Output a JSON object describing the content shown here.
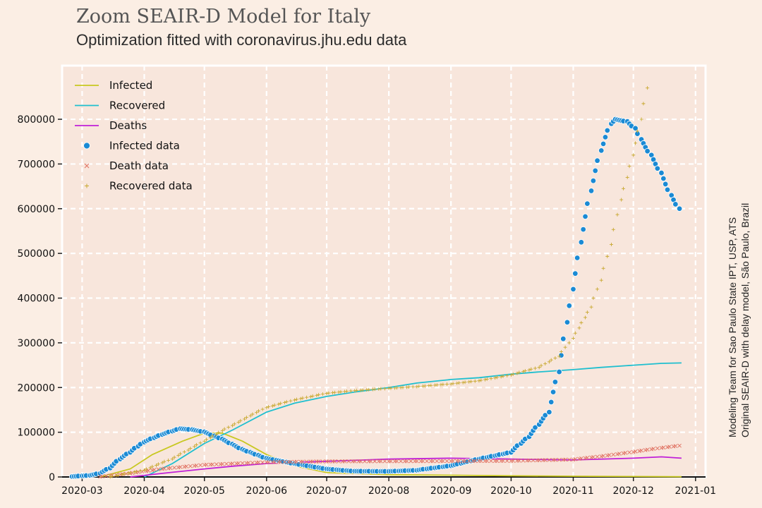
{
  "header": {
    "title": "Zoom SEAIR-D Model for Italy",
    "subtitle": "Optimization fitted with coronavirus.jhu.edu data"
  },
  "credits": {
    "line1": "Modeling Team for Sao Paulo State IPT, USP, ATS",
    "line2": "Original SEAIR-D with delay model, São Paulo, Brazil"
  },
  "colors": {
    "background": "#fbeee4",
    "plot_background": "#f8e6dc",
    "grid": "#ffffff",
    "infected_model": "#c8c820",
    "recovered_model": "#1fbfcf",
    "deaths_model": "#c020d8",
    "infected_data": "#1a8ad4",
    "death_data": "#e07060",
    "recovered_data": "#c8a830"
  },
  "chart_data": {
    "type": "line",
    "title": "Zoom SEAIR-D Model for Italy",
    "subtitle": "Optimization fitted with coronavirus.jhu.edu data",
    "xlabel": "",
    "ylabel": "",
    "x_ticks": [
      "2020-03",
      "2020-04",
      "2020-05",
      "2020-06",
      "2020-07",
      "2020-08",
      "2020-09",
      "2020-10",
      "2020-11",
      "2020-12",
      "2021-01"
    ],
    "y_ticks": [
      "0",
      "100000",
      "200000",
      "300000",
      "400000",
      "500000",
      "600000",
      "700000",
      "800000"
    ],
    "xlim": [
      "2020-02-20",
      "2021-01-06"
    ],
    "ylim": [
      0,
      920000
    ],
    "grid": true,
    "legend_position": "top-left",
    "legend": [
      "Infected",
      "Recovered",
      "Deaths",
      "Infected data",
      "Death data",
      "Recovered data"
    ],
    "series": [
      {
        "name": "Infected",
        "kind": "line",
        "points": [
          [
            "2020-03-10",
            0
          ],
          [
            "2020-03-25",
            18000
          ],
          [
            "2020-04-05",
            50000
          ],
          [
            "2020-04-20",
            80000
          ],
          [
            "2020-05-01",
            98000
          ],
          [
            "2020-05-10",
            98000
          ],
          [
            "2020-05-20",
            80000
          ],
          [
            "2020-06-01",
            50000
          ],
          [
            "2020-06-15",
            25000
          ],
          [
            "2020-07-01",
            10000
          ],
          [
            "2020-08-01",
            5000
          ],
          [
            "2020-09-01",
            4000
          ],
          [
            "2020-10-01",
            2500
          ],
          [
            "2020-11-01",
            1500
          ],
          [
            "2020-12-01",
            1000
          ],
          [
            "2020-12-25",
            500
          ]
        ]
      },
      {
        "name": "Recovered",
        "kind": "line",
        "points": [
          [
            "2020-04-01",
            0
          ],
          [
            "2020-04-15",
            30000
          ],
          [
            "2020-05-01",
            75000
          ],
          [
            "2020-05-15",
            105000
          ],
          [
            "2020-06-01",
            145000
          ],
          [
            "2020-06-15",
            165000
          ],
          [
            "2020-07-01",
            180000
          ],
          [
            "2020-07-15",
            190000
          ],
          [
            "2020-08-01",
            200000
          ],
          [
            "2020-08-15",
            210000
          ],
          [
            "2020-09-01",
            218000
          ],
          [
            "2020-09-15",
            222000
          ],
          [
            "2020-10-01",
            230000
          ],
          [
            "2020-10-15",
            235000
          ],
          [
            "2020-11-01",
            240000
          ],
          [
            "2020-11-15",
            245000
          ],
          [
            "2020-12-01",
            250000
          ],
          [
            "2020-12-15",
            254000
          ],
          [
            "2020-12-25",
            255000
          ]
        ]
      },
      {
        "name": "Deaths",
        "kind": "line",
        "points": [
          [
            "2020-03-25",
            0
          ],
          [
            "2020-04-10",
            8000
          ],
          [
            "2020-05-01",
            18000
          ],
          [
            "2020-05-15",
            24000
          ],
          [
            "2020-06-01",
            30000
          ],
          [
            "2020-07-01",
            35000
          ],
          [
            "2020-08-01",
            40000
          ],
          [
            "2020-09-01",
            42000
          ],
          [
            "2020-10-01",
            40000
          ],
          [
            "2020-11-01",
            38000
          ],
          [
            "2020-12-01",
            42000
          ],
          [
            "2020-12-15",
            45000
          ],
          [
            "2020-12-25",
            42000
          ]
        ]
      },
      {
        "name": "Infected data",
        "kind": "dot",
        "points": [
          [
            "2020-02-25",
            1000
          ],
          [
            "2020-03-05",
            3500
          ],
          [
            "2020-03-10",
            8000
          ],
          [
            "2020-03-15",
            20000
          ],
          [
            "2020-03-20",
            40000
          ],
          [
            "2020-03-25",
            55000
          ],
          [
            "2020-04-01",
            78000
          ],
          [
            "2020-04-10",
            95000
          ],
          [
            "2020-04-19",
            108000
          ],
          [
            "2020-04-25",
            106000
          ],
          [
            "2020-05-01",
            101000
          ],
          [
            "2020-05-10",
            85000
          ],
          [
            "2020-05-20",
            62000
          ],
          [
            "2020-06-01",
            42000
          ],
          [
            "2020-06-15",
            30000
          ],
          [
            "2020-07-01",
            18000
          ],
          [
            "2020-07-15",
            13000
          ],
          [
            "2020-08-01",
            12500
          ],
          [
            "2020-08-15",
            15000
          ],
          [
            "2020-09-01",
            25000
          ],
          [
            "2020-09-15",
            40000
          ],
          [
            "2020-10-01",
            55000
          ],
          [
            "2020-10-10",
            90000
          ],
          [
            "2020-10-20",
            145000
          ],
          [
            "2020-10-25",
            235000
          ],
          [
            "2020-11-01",
            420000
          ],
          [
            "2020-11-05",
            525000
          ],
          [
            "2020-11-10",
            640000
          ],
          [
            "2020-11-15",
            730000
          ],
          [
            "2020-11-20",
            790000
          ],
          [
            "2020-11-22",
            800000
          ],
          [
            "2020-11-28",
            795000
          ],
          [
            "2020-12-02",
            780000
          ],
          [
            "2020-12-05",
            755000
          ],
          [
            "2020-12-10",
            720000
          ],
          [
            "2020-12-15",
            680000
          ],
          [
            "2020-12-20",
            630000
          ],
          [
            "2020-12-24",
            600000
          ]
        ]
      },
      {
        "name": "Death data",
        "kind": "x",
        "points": [
          [
            "2020-03-10",
            500
          ],
          [
            "2020-03-25",
            8000
          ],
          [
            "2020-04-10",
            18000
          ],
          [
            "2020-05-01",
            27000
          ],
          [
            "2020-06-01",
            33000
          ],
          [
            "2020-07-01",
            34800
          ],
          [
            "2020-08-01",
            35200
          ],
          [
            "2020-09-01",
            35500
          ],
          [
            "2020-10-01",
            36000
          ],
          [
            "2020-11-01",
            39000
          ],
          [
            "2020-11-15",
            46000
          ],
          [
            "2020-12-01",
            56000
          ],
          [
            "2020-12-15",
            65000
          ],
          [
            "2020-12-24",
            70000
          ]
        ]
      },
      {
        "name": "Recovered data",
        "kind": "plus",
        "points": [
          [
            "2020-03-15",
            0
          ],
          [
            "2020-04-01",
            15000
          ],
          [
            "2020-04-15",
            40000
          ],
          [
            "2020-05-01",
            80000
          ],
          [
            "2020-05-15",
            115000
          ],
          [
            "2020-06-01",
            155000
          ],
          [
            "2020-06-15",
            172000
          ],
          [
            "2020-07-01",
            187000
          ],
          [
            "2020-07-15",
            193000
          ],
          [
            "2020-08-01",
            198000
          ],
          [
            "2020-08-15",
            202000
          ],
          [
            "2020-09-01",
            208000
          ],
          [
            "2020-09-15",
            215000
          ],
          [
            "2020-10-01",
            228000
          ],
          [
            "2020-10-15",
            245000
          ],
          [
            "2020-10-25",
            270000
          ],
          [
            "2020-11-01",
            310000
          ],
          [
            "2020-11-10",
            380000
          ],
          [
            "2020-11-15",
            440000
          ],
          [
            "2020-11-20",
            520000
          ],
          [
            "2020-11-25",
            620000
          ],
          [
            "2020-12-01",
            720000
          ],
          [
            "2020-12-05",
            800000
          ],
          [
            "2020-12-08",
            870000
          ]
        ]
      }
    ]
  }
}
